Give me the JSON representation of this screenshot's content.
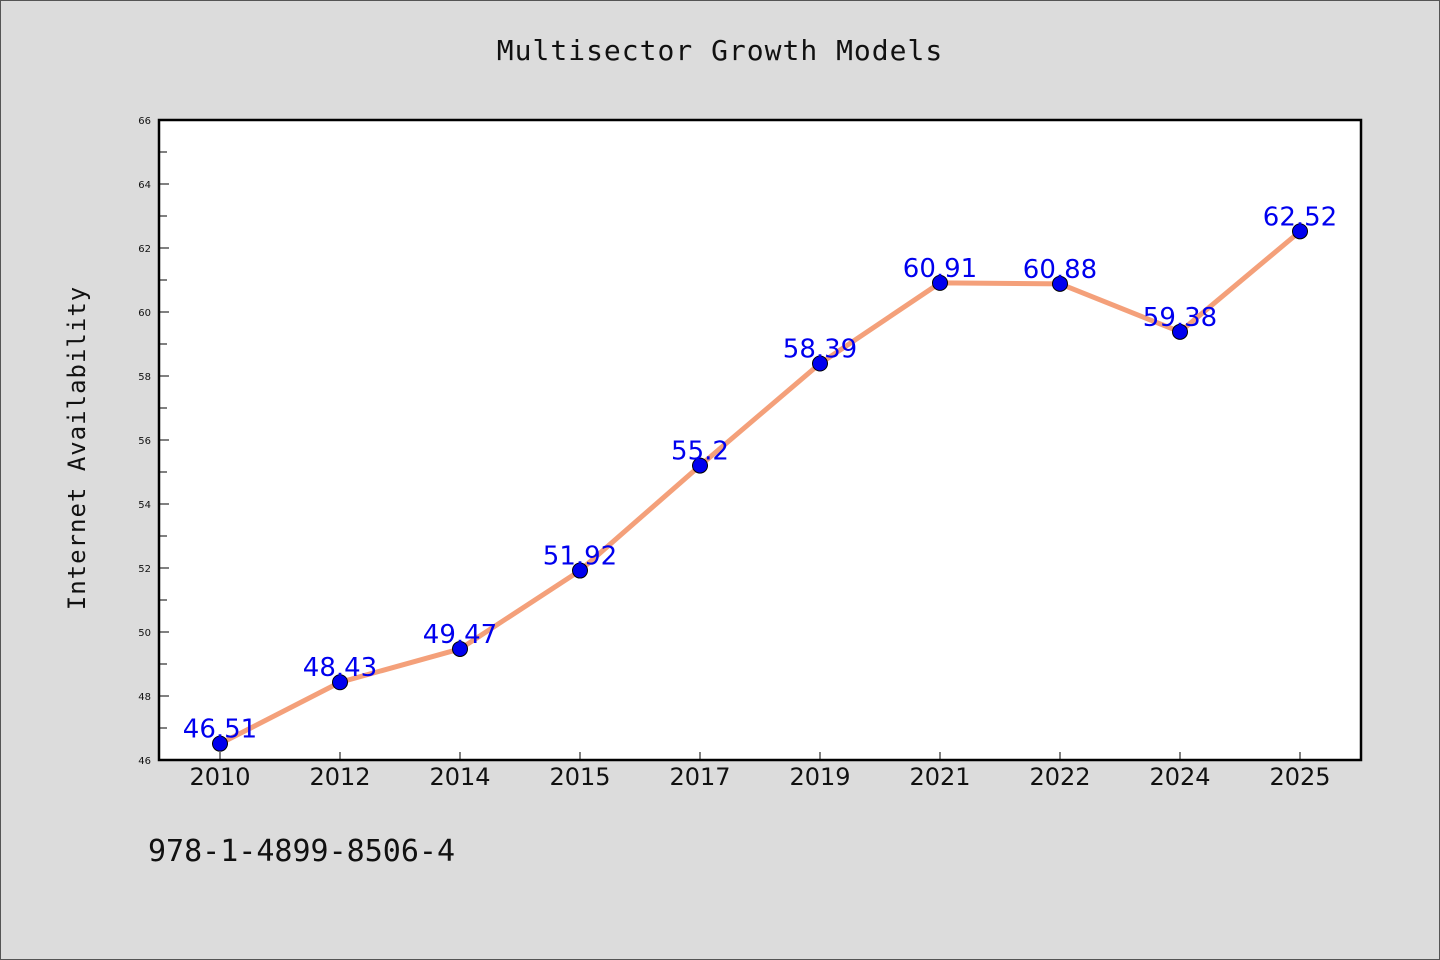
{
  "colors": {
    "line": "#f4a07a",
    "marker": "#0000ee",
    "data_label": "#0000ee",
    "background": "#dcdcdc",
    "plot_bg": "#ffffff"
  },
  "isbn": "978-1-4899-8506-4",
  "chart_data": {
    "type": "line",
    "title": "Multisector Growth Models",
    "xlabel": "",
    "ylabel": "Internet Availability",
    "categories": [
      "2010",
      "2012",
      "2014",
      "2015",
      "2017",
      "2019",
      "2021",
      "2022",
      "2024",
      "2025"
    ],
    "series": [
      {
        "values": [
          46.51,
          48.43,
          49.47,
          51.92,
          55.2,
          58.39,
          60.91,
          60.88,
          59.38,
          62.52
        ],
        "labels": [
          "46.51",
          "48.43",
          "49.47",
          "51.92",
          "55.2",
          "58.39",
          "60.91",
          "60.88",
          "59.38",
          "62.52"
        ]
      }
    ],
    "ylim": [
      46,
      66
    ],
    "yticks": [
      "46",
      "48",
      "50",
      "52",
      "54",
      "56",
      "58",
      "60",
      "62",
      "64",
      "66"
    ],
    "grid": false,
    "legend": "none"
  }
}
